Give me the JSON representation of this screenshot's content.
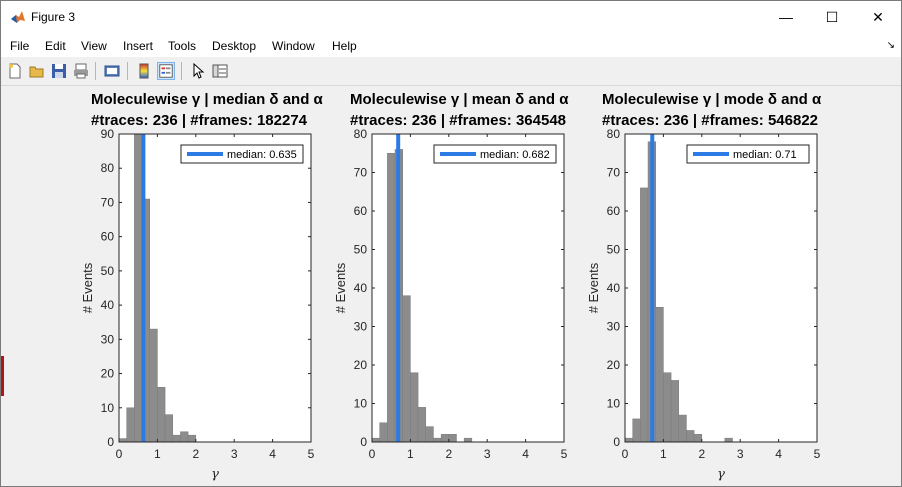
{
  "window": {
    "title": "Figure 3",
    "controls": {
      "minimize": "—",
      "maximize": "☐",
      "close": "✕"
    }
  },
  "menu": [
    "File",
    "Edit",
    "View",
    "Insert",
    "Tools",
    "Desktop",
    "Window",
    "Help"
  ],
  "toolbar": {
    "icons": [
      "new-figure-icon",
      "open-file-icon",
      "save-icon",
      "print-icon",
      "print-preview-icon",
      "colorbar-icon",
      "legend-icon",
      "pointer-icon",
      "property-inspector-icon"
    ]
  },
  "chart_data": [
    {
      "type": "histogram",
      "title": [
        "Moleculewise γ | median δ and α",
        "#traces: 236 | #frames: 182274"
      ],
      "xlabel": "γ",
      "ylabel": "# Events",
      "xlim": [
        0,
        5
      ],
      "ylim": [
        0,
        90
      ],
      "xticks": [
        0,
        1,
        2,
        3,
        4,
        5
      ],
      "yticks": [
        0,
        10,
        20,
        30,
        40,
        50,
        60,
        70,
        80,
        90
      ],
      "bin_width": 0.2,
      "bin_edges_start": 0,
      "values": [
        1,
        10,
        90,
        71,
        33,
        16,
        8,
        2,
        3,
        2,
        0,
        0,
        0,
        0,
        0,
        0,
        0,
        0,
        0,
        0,
        0,
        0,
        0,
        0,
        0
      ],
      "median": 0.635,
      "legend": "median: 0.635",
      "legend_loc": "top-right",
      "bar_color": "#8c8c8c",
      "line_color": "#2c7be5"
    },
    {
      "type": "histogram",
      "title": [
        "Moleculewise γ | mean δ and α",
        "#traces: 236 | #frames: 364548"
      ],
      "xlabel": "",
      "ylabel": "# Events",
      "xlim": [
        0,
        5
      ],
      "ylim": [
        0,
        80
      ],
      "xticks": [
        0,
        1,
        2,
        3,
        4,
        5
      ],
      "yticks": [
        0,
        10,
        20,
        30,
        40,
        50,
        60,
        70,
        80
      ],
      "bin_width": 0.2,
      "bin_edges_start": 0,
      "values": [
        1,
        5,
        75,
        76,
        38,
        18,
        9,
        4,
        1,
        2,
        2,
        0,
        1,
        0,
        0,
        0,
        0,
        0,
        0,
        0,
        0,
        0,
        0,
        0,
        0
      ],
      "median": 0.682,
      "legend": "median: 0.682",
      "legend_loc": "top-right",
      "bar_color": "#8c8c8c",
      "line_color": "#2c7be5"
    },
    {
      "type": "histogram",
      "title": [
        "Moleculewise γ | mode δ and α",
        "#traces: 236 | #frames: 546822"
      ],
      "xlabel": "γ",
      "ylabel": "# Events",
      "xlim": [
        0,
        5
      ],
      "ylim": [
        0,
        80
      ],
      "xticks": [
        0,
        1,
        2,
        3,
        4,
        5
      ],
      "yticks": [
        0,
        10,
        20,
        30,
        40,
        50,
        60,
        70,
        80
      ],
      "bin_width": 0.2,
      "bin_edges_start": 0,
      "values": [
        1,
        6,
        66,
        78,
        35,
        18,
        16,
        7,
        3,
        2,
        0,
        0,
        0,
        1,
        0,
        0,
        0,
        0,
        0,
        0,
        0,
        0,
        0,
        0,
        0
      ],
      "median": 0.71,
      "legend": "median: 0.71",
      "legend_loc": "top-right",
      "bar_color": "#8c8c8c",
      "line_color": "#2c7be5"
    }
  ]
}
